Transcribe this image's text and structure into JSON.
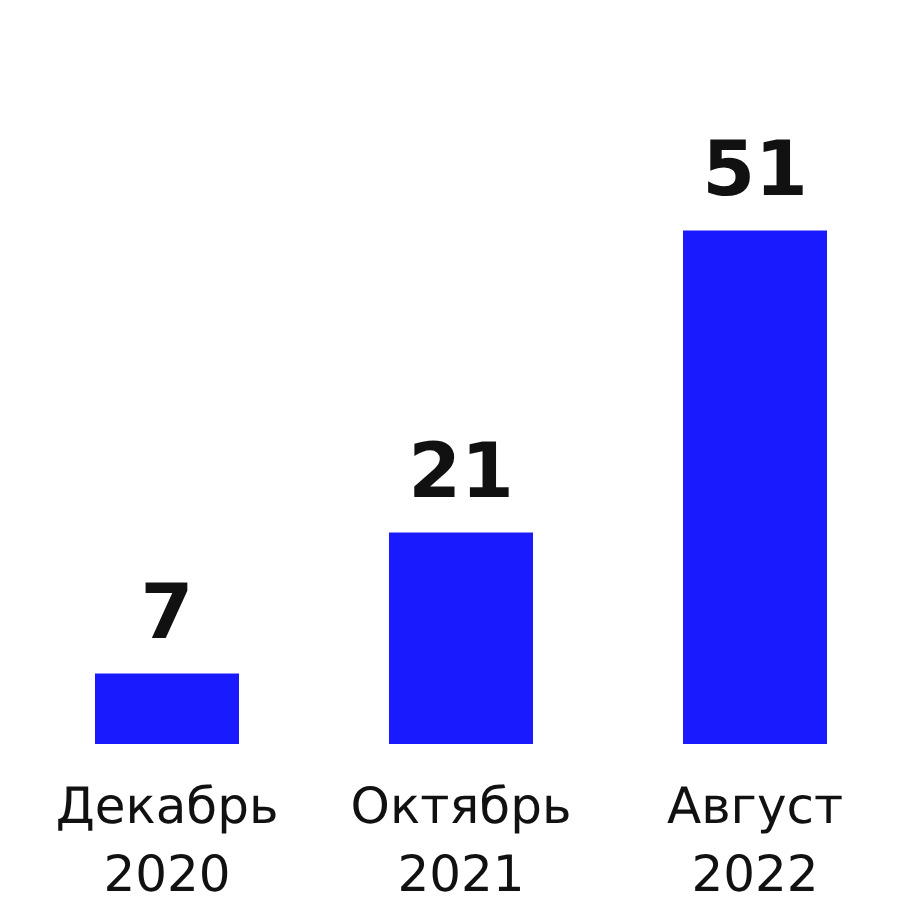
{
  "chart_data": {
    "type": "bar",
    "categories": [
      "Декабрь 2020",
      "Октябрь 2021",
      "Август 2022"
    ],
    "values": [
      7,
      21,
      51
    ],
    "color": "#1a1aff",
    "data_labels": true
  }
}
